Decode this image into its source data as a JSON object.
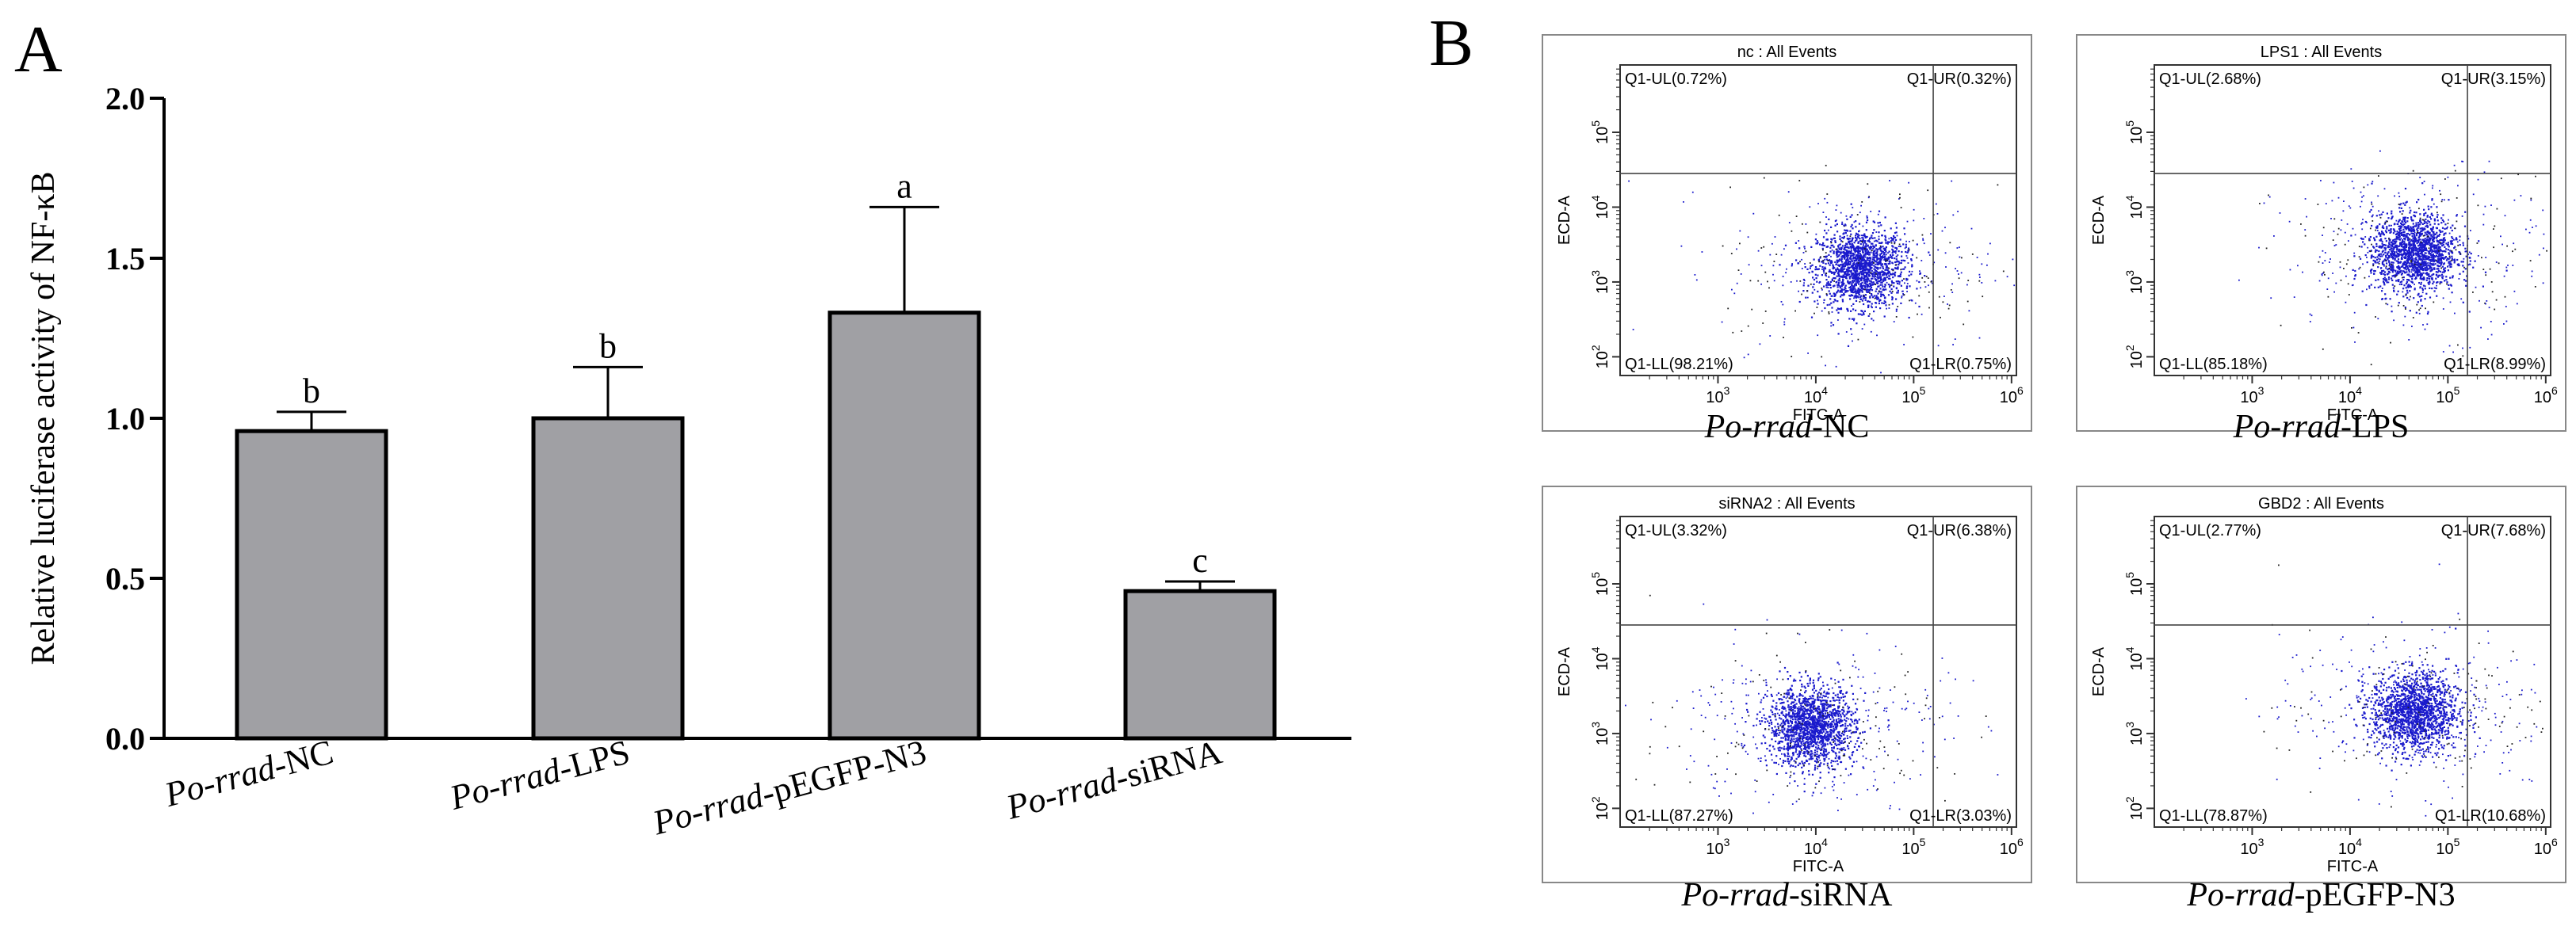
{
  "panel_a": {
    "letter": "A",
    "chart_data": {
      "type": "bar",
      "categories": [
        "Po-rrad-NC",
        "Po-rrad-LPS",
        "Po-rrad-pEGFP-N3",
        "Po-rrad-siRNA"
      ],
      "category_labels": [
        {
          "italic": "Po-rrad",
          "rest": "-NC"
        },
        {
          "italic": "Po-rrad",
          "rest": "-LPS"
        },
        {
          "italic": "Po-rrad",
          "rest": "-pEGFP-N3"
        },
        {
          "italic": "Po-rrad",
          "rest": "-siRNA"
        }
      ],
      "values": [
        0.96,
        1.0,
        1.33,
        0.46
      ],
      "errors": [
        0.06,
        0.16,
        0.33,
        0.03
      ],
      "significance": [
        "b",
        "b",
        "a",
        "c"
      ],
      "ylabel": "Relative luciferase activity of NF-κB",
      "xlabel": "",
      "ylim": [
        0,
        2.0
      ],
      "yticks": [
        "0.0",
        "0.5",
        "1.0",
        "1.5",
        "2.0"
      ],
      "bar_color": "#a0a0a4"
    }
  },
  "panel_b": {
    "letter": "B",
    "plots": [
      {
        "title": "nc : All Events",
        "caption_italic": "Po-rrad",
        "caption_rest": "-NC",
        "ul": "Q1-UL(0.72%)",
        "ur": "Q1-UR(0.32%)",
        "ll": "Q1-LL(98.21%)",
        "lr": "Q1-LR(0.75%)",
        "cluster_log": [
          4.45,
          3.2
        ]
      },
      {
        "title": "LPS1 : All Events",
        "caption_italic": "Po-rrad",
        "caption_rest": "-LPS",
        "ul": "Q1-UL(2.68%)",
        "ur": "Q1-UR(3.15%)",
        "ll": "Q1-LL(85.18%)",
        "lr": "Q1-LR(8.99%)",
        "cluster_log": [
          4.65,
          3.4
        ]
      },
      {
        "title": "siRNA2 : All Events",
        "caption_italic": "Po-rrad",
        "caption_rest": "-siRNA",
        "ul": "Q1-UL(3.32%)",
        "ur": "Q1-UR(6.38%)",
        "ll": "Q1-LL(87.27%)",
        "lr": "Q1-LR(3.03%)",
        "cluster_log": [
          3.95,
          3.1
        ]
      },
      {
        "title": "GBD2 : All Events",
        "caption_italic": "Po-rrad",
        "caption_rest": "-pEGFP-N3",
        "ul": "Q1-UL(2.77%)",
        "ur": "Q1-UR(7.68%)",
        "ll": "Q1-LL(78.87%)",
        "lr": "Q1-LR(10.68%)",
        "cluster_log": [
          4.65,
          3.3
        ]
      }
    ],
    "xlabel": "FITC-A",
    "ylabel": "ECD-A",
    "x_ticks": [
      "3",
      "4",
      "5",
      "6"
    ],
    "y_ticks": [
      "2",
      "3",
      "4",
      "5"
    ],
    "dot_color": "#1a1acc"
  }
}
